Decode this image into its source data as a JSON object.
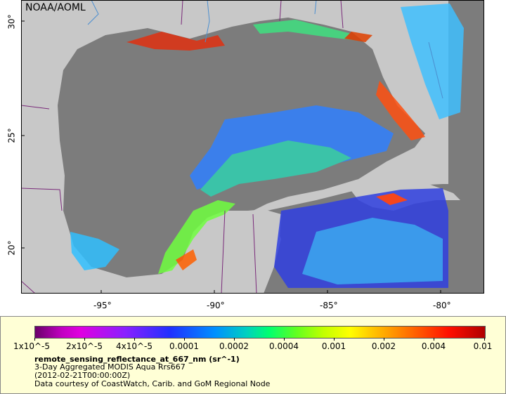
{
  "map": {
    "credit": "NOAA/AOML",
    "lat_labels": [
      "30°",
      "25°",
      "20°"
    ],
    "lon_labels": [
      "-95°",
      "-90°",
      "-85°",
      "-80°"
    ],
    "colors": {
      "land": "#c8c8c8",
      "nodata": "#7c7c7c",
      "border": "#7a2a7a",
      "river": "#4c8fd0"
    }
  },
  "legend": {
    "tick_labels": [
      "1x10^-5",
      "2x10^-5",
      "4x10^-5",
      "0.0001",
      "0.0002",
      "0.0004",
      "0.001",
      "0.002",
      "0.004",
      "0.01"
    ],
    "variable": "remote_sensing_reflectance_at_667_nm (sr^-1)",
    "line1": "3-Day Aggregated MODIS Aqua Rrs667",
    "line2": "(2012-02-21T00:00:00Z)",
    "line3": "Data courtesy of CoastWatch, Carib. and GoM Regional Node"
  }
}
